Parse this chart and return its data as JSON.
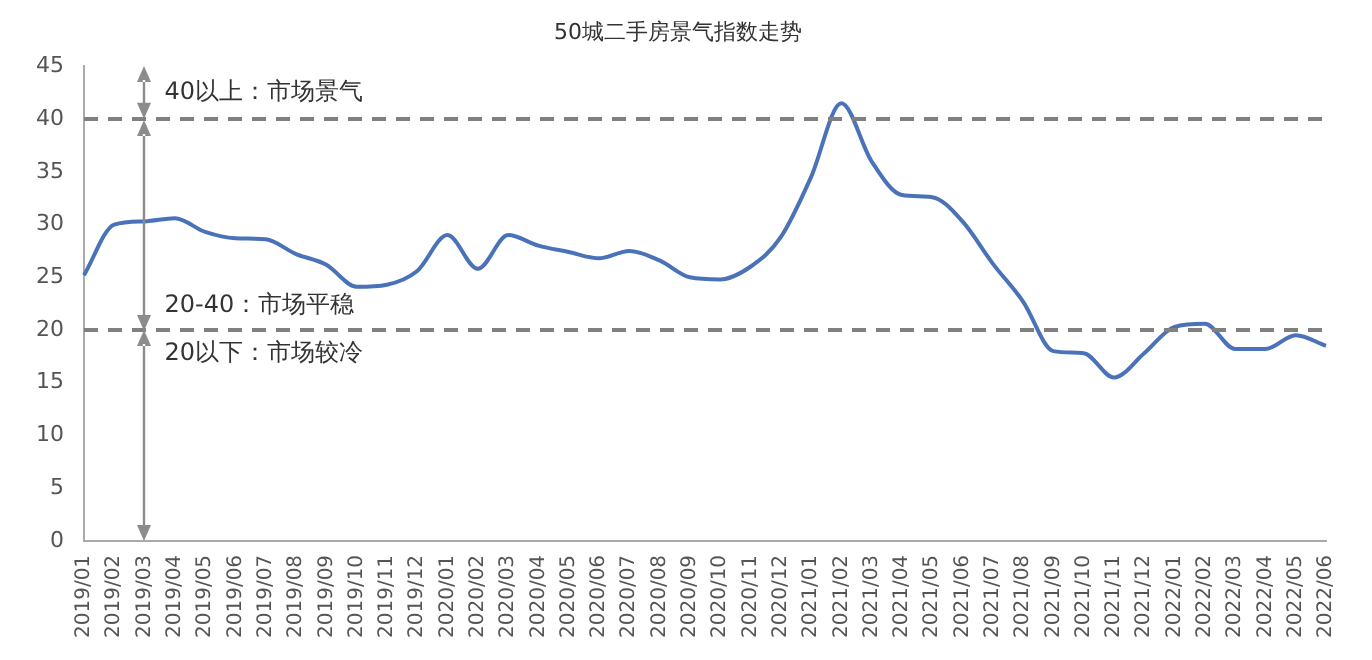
{
  "chart_data": {
    "type": "line",
    "title": "50城二手房景气指数走势",
    "categories": [
      "2019/01",
      "2019/02",
      "2019/03",
      "2019/04",
      "2019/05",
      "2019/06",
      "2019/07",
      "2019/08",
      "2019/09",
      "2019/10",
      "2019/11",
      "2019/12",
      "2020/01",
      "2020/02",
      "2020/03",
      "2020/04",
      "2020/05",
      "2020/06",
      "2020/07",
      "2020/08",
      "2020/09",
      "2020/10",
      "2020/11",
      "2020/12",
      "2021/01",
      "2021/02",
      "2021/03",
      "2021/04",
      "2021/05",
      "2021/06",
      "2021/07",
      "2021/08",
      "2021/09",
      "2021/10",
      "2021/11",
      "2021/12",
      "2022/01",
      "2022/02",
      "2022/03",
      "2022/04",
      "2022/05",
      "2022/06"
    ],
    "series": [
      {
        "color": "#4a72b8",
        "values": [
          25.2,
          30.0,
          30.3,
          30.6,
          29.3,
          28.7,
          28.6,
          27.2,
          26.2,
          24.1,
          24.3,
          25.6,
          29.0,
          25.8,
          29.0,
          28.0,
          27.4,
          26.8,
          27.5,
          26.6,
          25.0,
          24.8,
          26.0,
          28.8,
          34.5,
          41.5,
          36.0,
          32.8,
          32.6,
          30.3,
          26.3,
          22.7,
          18.0,
          17.8,
          15.5,
          17.8,
          20.3,
          20.6,
          18.2,
          18.2,
          19.5,
          18.5
        ]
      }
    ],
    "ylim": [
      0,
      45
    ],
    "yticks": [
      0,
      5,
      10,
      15,
      20,
      25,
      30,
      35,
      40,
      45
    ],
    "grid": false,
    "legend": false,
    "marker": "none",
    "line_style": "solid",
    "ref_lines": [
      {
        "axis": "y",
        "value": 40,
        "color": "#808080",
        "line_style": "dashed"
      },
      {
        "axis": "y",
        "value": 20,
        "color": "#808080",
        "line_style": "dashed"
      }
    ],
    "annotations": [
      "40以上：市场景气",
      "20-40：市场平稳",
      "20以下：市场较冷"
    ]
  }
}
